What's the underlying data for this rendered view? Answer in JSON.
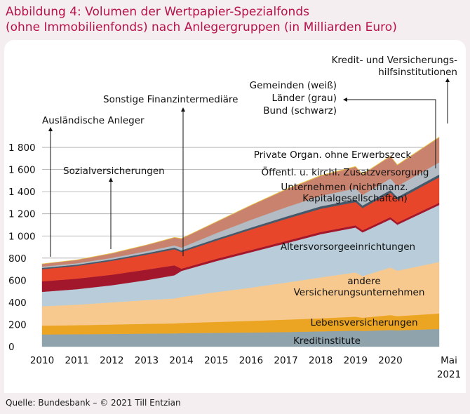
{
  "title_line1": "Abbildung 4: Volumen der Wertpapier-Spezialfonds",
  "title_line2": "(ohne Immobilienfonds) nach Anlegergruppen (in Milliarden Euro)",
  "source": "Quelle: Bundesbank – © 2021 Till Entzian",
  "chart_data": {
    "type": "area",
    "title": "Abbildung 4: Volumen der Wertpapier-Spezialfonds (ohne Immobilienfonds) nach Anlegergruppen (in Milliarden Euro)",
    "xlabel": "",
    "ylabel": "",
    "stacked": true,
    "ylim": [
      0,
      1950
    ],
    "yticks": [
      0,
      200,
      400,
      600,
      800,
      1000,
      1200,
      1400,
      1600,
      1800
    ],
    "ytick_labels": [
      "0",
      "200",
      "400",
      "600",
      "800",
      "1 000",
      "1 200",
      "1 400",
      "1 600",
      "1 800"
    ],
    "xlim": [
      2010,
      2021.4
    ],
    "xticks": [
      2010,
      2011,
      2012,
      2013,
      2014,
      2015,
      2016,
      2017,
      2018,
      2019,
      2020
    ],
    "xtick_labels": [
      "2010",
      "2011",
      "2012",
      "2013",
      "2014",
      "2015",
      "2016",
      "2017",
      "2018",
      "2019",
      "2020"
    ],
    "x_end_label_1": "Mai",
    "x_end_label_2": "2021",
    "grid": true,
    "x": [
      2010,
      2011,
      2012,
      2013,
      2013.8,
      2014,
      2015,
      2016,
      2017,
      2018,
      2019,
      2019.2,
      2020,
      2020.2,
      2021.4
    ],
    "series": [
      {
        "name": "Kreditinstitute",
        "color": "#8fa3ad",
        "values": [
          110,
          112,
          115,
          118,
          120,
          122,
          125,
          128,
          132,
          138,
          145,
          142,
          150,
          148,
          160
        ]
      },
      {
        "name": "Lebensversicherungen",
        "color": "#eca522",
        "values": [
          80,
          82,
          85,
          88,
          90,
          92,
          98,
          105,
          112,
          118,
          126,
          120,
          135,
          128,
          140
        ]
      },
      {
        "name": "andere Versicherungsunternehmen",
        "color": "#f8c98f",
        "values": [
          175,
          185,
          200,
          215,
          225,
          235,
          270,
          300,
          335,
          370,
          400,
          375,
          430,
          410,
          465
        ]
      },
      {
        "name": "Altersvorsorgeeinrichtungen",
        "color": "#b8cdd9",
        "values": [
          130,
          140,
          155,
          180,
          210,
          235,
          280,
          320,
          355,
          390,
          405,
          395,
          435,
          415,
          515
        ]
      },
      {
        "name": "Sonstige Finanzintermediäre",
        "color": "#a3172c",
        "values": [
          95,
          95,
          95,
          95,
          90,
          20,
          20,
          20,
          20,
          20,
          20,
          20,
          20,
          20,
          20
        ]
      },
      {
        "name": "Unternehmen (nichtfinanz. Kapitalgesellschaften)",
        "color": "#e8462b",
        "values": [
          110,
          115,
          125,
          135,
          145,
          150,
          165,
          185,
          200,
          210,
          210,
          200,
          220,
          205,
          230
        ]
      },
      {
        "name": "Öffentl. u. kirchl. Zusatzversorgung",
        "color": "#46596a",
        "values": [
          12,
          12,
          13,
          14,
          15,
          16,
          17,
          18,
          20,
          22,
          23,
          23,
          24,
          24,
          25
        ]
      },
      {
        "name": "Gemeinden, Länder, Bund",
        "color": "#b3bcc4",
        "values": [
          10,
          12,
          14,
          17,
          20,
          25,
          50,
          70,
          85,
          95,
          100,
          95,
          105,
          100,
          110
        ]
      },
      {
        "name": "Private Organ. ohne Erwerbszeck",
        "color": "#c9826d",
        "values": [
          25,
          30,
          40,
          55,
          70,
          80,
          100,
          130,
          160,
          180,
          195,
          185,
          200,
          190,
          225
        ]
      },
      {
        "name": "Kredit- und Versicherungshilfsinstitutionen",
        "color": "#e9c445",
        "values": [
          2,
          2,
          3,
          3,
          3,
          3,
          4,
          4,
          4,
          5,
          5,
          5,
          5,
          5,
          5
        ]
      }
    ],
    "annotations": [
      "Kreditinstitute",
      "Lebensversicherungen",
      "andere",
      "Versicherungsunternehmen",
      "Altersvorsorgeeinrichtungen",
      "Unternehmen (nichtfinanz.",
      "Kapitalgesellschaften)",
      "Öffentl. u. kirchl. Zusatzversorgung",
      "Private Organ. ohne Erwerbszeck",
      "Gemeinden (weiß)",
      "Länder (grau)",
      "Bund (schwarz)",
      "Kredit- und Versicherungs-",
      "hilfsinstitutionen",
      "Sonstige Finanzintermediäre",
      "Sozialversicherungen",
      "Ausländische Anleger"
    ]
  }
}
